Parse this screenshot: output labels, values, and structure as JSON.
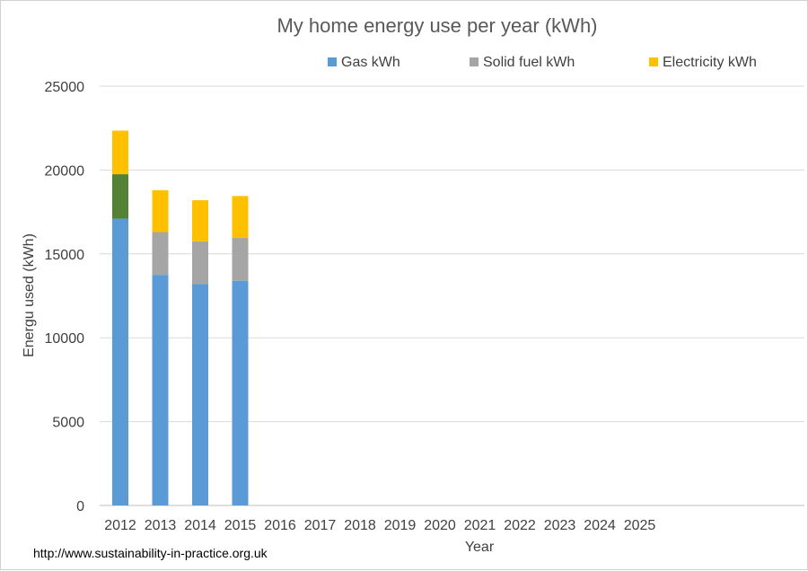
{
  "chart_data": {
    "type": "bar",
    "stacked": true,
    "title": "My home energy use per year (kWh)",
    "xlabel": "Year",
    "ylabel": "Energu used (kWh)",
    "ylim": [
      0,
      25000
    ],
    "yticks": [
      0,
      5000,
      10000,
      15000,
      20000,
      25000
    ],
    "categories": [
      "2012",
      "2013",
      "2014",
      "2015",
      "2016",
      "2017",
      "2018",
      "2019",
      "2020",
      "2021",
      "2022",
      "2023",
      "2024",
      "2025"
    ],
    "series": [
      {
        "name": "Gas kWh",
        "color": "#5b9bd5",
        "values": [
          17100,
          13750,
          13200,
          13400,
          null,
          null,
          null,
          null,
          null,
          null,
          null,
          null,
          null,
          null
        ]
      },
      {
        "name": "Solid fuel kWh",
        "color": "#a5a5a5",
        "values": [
          2650,
          2550,
          2550,
          2550,
          null,
          null,
          null,
          null,
          null,
          null,
          null,
          null,
          null,
          null
        ]
      },
      {
        "name": "Electricity kWh",
        "color": "#ffc000",
        "values": [
          2600,
          2500,
          2450,
          2500,
          null,
          null,
          null,
          null,
          null,
          null,
          null,
          null,
          null,
          null
        ]
      }
    ],
    "highlight": {
      "series_index": 1,
      "category_index": 0,
      "color": "#548235"
    },
    "grid": true,
    "legend_position": "top-right"
  },
  "source_url": "http://www.sustainability-in-practice.org.uk"
}
